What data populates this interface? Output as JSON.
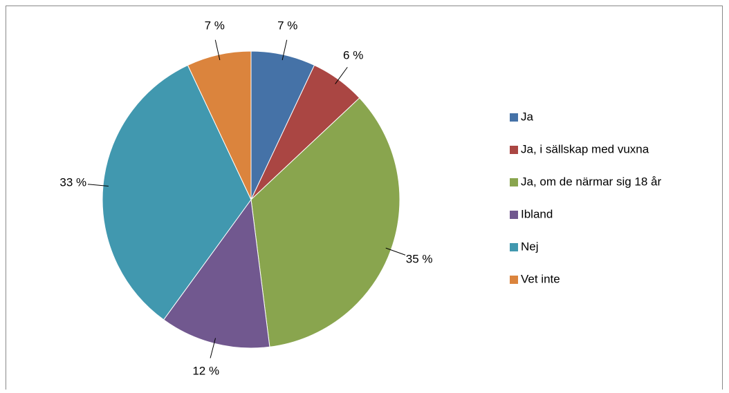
{
  "chart_data": {
    "type": "pie",
    "categories": [
      "Ja",
      "Ja, i sällskap med vuxna",
      "Ja, om de närmar sig 18 år",
      "Ibland",
      "Nej",
      "Vet inte"
    ],
    "values": [
      7,
      6,
      35,
      12,
      33,
      7
    ],
    "value_labels": [
      "7 %",
      "6 %",
      "35 %",
      "12 %",
      "33 %",
      "7 %"
    ],
    "colors": [
      "#4572a7",
      "#aa4643",
      "#89a54e",
      "#71588f",
      "#4198af",
      "#db843d"
    ],
    "legend": "right"
  }
}
